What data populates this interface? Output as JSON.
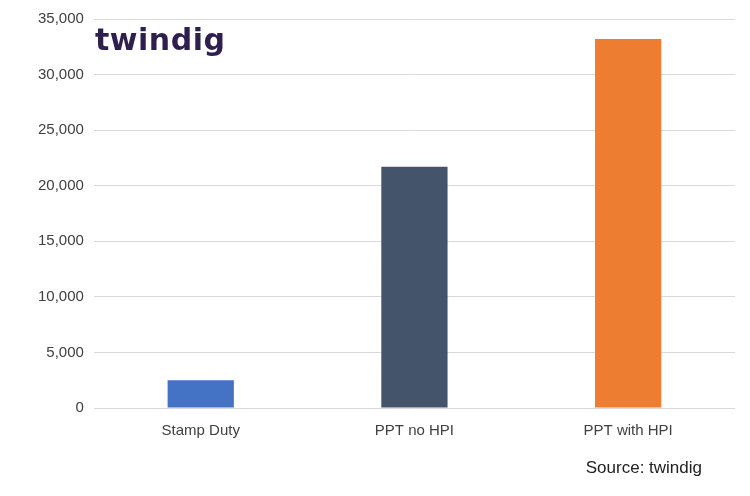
{
  "chart_data": {
    "type": "bar",
    "annotations": [
      "twindig",
      "Source: twindig"
    ],
    "categories": [
      "Stamp Duty",
      "PPT no HPI",
      "PPT with HPI"
    ],
    "values": [
      2500,
      21700,
      33200
    ],
    "colors": [
      "#4472c4",
      "#44546a",
      "#ed7d31"
    ],
    "ylim": [
      0,
      35000
    ],
    "yticks": [
      0,
      {
        "value": 5000,
        "label": "5,000"
      },
      {
        "value": 10000,
        "label": "10,000"
      },
      {
        "value": 15000,
        "label": "15,000"
      },
      {
        "value": 20000,
        "label": "20,000"
      },
      {
        "value": 25000,
        "label": "25,000"
      },
      {
        "value": 30000,
        "label": "30,000"
      },
      {
        "value": 35000,
        "label": "35,000"
      }
    ],
    "grid": true
  }
}
